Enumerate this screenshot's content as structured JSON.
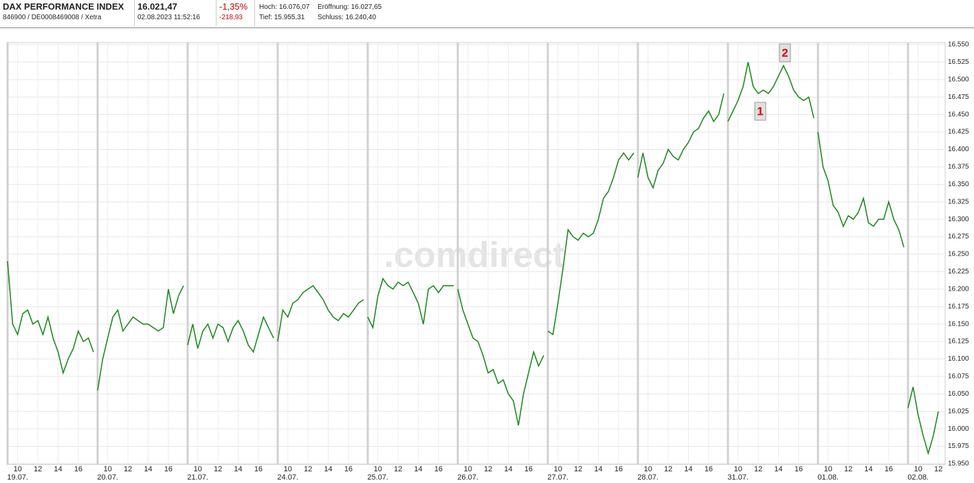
{
  "header": {
    "name": "DAX PERFORMANCE INDEX",
    "ids": "846900 / DE0008469008 / Xetra",
    "price": "16.021,47",
    "datetime": "02.08.2023 11:52:16",
    "change_pct": "-1,35%",
    "change_abs": "-218,93",
    "high": "Hoch: 16.076,07",
    "low": "Tief: 15.955,31",
    "open": "Eröffnung: 16.027,65",
    "close": "Schluss: 16.240,40"
  },
  "chart_data": {
    "type": "line",
    "color": "#1f8a1f",
    "watermark": ".comdirect",
    "annotations": [
      "1",
      "2"
    ],
    "grid": true,
    "xlim": [
      9,
      17.5
    ],
    "ylim": [
      15950,
      16550
    ],
    "yticks": [
      {
        "value": 15950,
        "label": "15.950"
      },
      {
        "value": 15975,
        "label": "15.975"
      },
      {
        "value": 16000,
        "label": "16.000"
      },
      {
        "value": 16025,
        "label": "16.025"
      },
      {
        "value": 16050,
        "label": "16.050"
      },
      {
        "value": 16075,
        "label": "16.075"
      },
      {
        "value": 16100,
        "label": "16.100"
      },
      {
        "value": 16125,
        "label": "16.125"
      },
      {
        "value": 16150,
        "label": "16.150"
      },
      {
        "value": 16175,
        "label": "16.175"
      },
      {
        "value": 16200,
        "label": "16.200"
      },
      {
        "value": 16225,
        "label": "16.225"
      },
      {
        "value": 16250,
        "label": "16.250"
      },
      {
        "value": 16275,
        "label": "16.275"
      },
      {
        "value": 16300,
        "label": "16.300"
      },
      {
        "value": 16325,
        "label": "16.325"
      },
      {
        "value": 16350,
        "label": "16.350"
      },
      {
        "value": 16375,
        "label": "16.375"
      },
      {
        "value": 16400,
        "label": "16.400"
      },
      {
        "value": 16425,
        "label": "16.425"
      },
      {
        "value": 16450,
        "label": "16.450"
      },
      {
        "value": 16475,
        "label": "16.475"
      },
      {
        "value": 16500,
        "label": "16.500"
      },
      {
        "value": 16525,
        "label": "16.525"
      },
      {
        "value": 16550,
        "label": "16.550"
      }
    ],
    "days": [
      {
        "label": "19.07.",
        "xticks": [
          10,
          12,
          14,
          16
        ],
        "x": [
          9,
          9.5,
          10,
          10.5,
          11,
          11.5,
          12,
          12.5,
          13,
          13.5,
          14,
          14.5,
          15,
          15.5,
          16,
          16.5,
          17,
          17.5
        ],
        "values": [
          16240,
          16150,
          16135,
          16165,
          16170,
          16150,
          16155,
          16135,
          16160,
          16130,
          16110,
          16080,
          16100,
          16115,
          16140,
          16125,
          16130,
          16110
        ]
      },
      {
        "label": "20.07.",
        "xticks": [
          10,
          12,
          14,
          16
        ],
        "x": [
          9,
          9.5,
          10,
          10.5,
          11,
          11.5,
          12,
          12.5,
          13,
          13.5,
          14,
          14.5,
          15,
          15.5,
          16,
          16.5,
          17,
          17.5
        ],
        "values": [
          16055,
          16100,
          16130,
          16160,
          16170,
          16140,
          16150,
          16160,
          16155,
          16150,
          16150,
          16145,
          16140,
          16145,
          16200,
          16165,
          16190,
          16205
        ]
      },
      {
        "label": "21.07.",
        "xticks": [
          10,
          12,
          14,
          16
        ],
        "x": [
          9,
          9.5,
          10,
          10.5,
          11,
          11.5,
          12,
          12.5,
          13,
          13.5,
          14,
          14.5,
          15,
          15.5,
          16,
          16.5,
          17,
          17.5
        ],
        "values": [
          16120,
          16150,
          16115,
          16140,
          16150,
          16130,
          16150,
          16145,
          16125,
          16145,
          16155,
          16140,
          16120,
          16110,
          16135,
          16160,
          16145,
          16130
        ]
      },
      {
        "label": "24.07.",
        "xticks": [
          10,
          12,
          14,
          16
        ],
        "x": [
          9,
          9.5,
          10,
          10.5,
          11,
          11.5,
          12,
          12.5,
          13,
          13.5,
          14,
          14.5,
          15,
          15.5,
          16,
          16.5,
          17,
          17.5
        ],
        "values": [
          16125,
          16170,
          16160,
          16180,
          16185,
          16195,
          16200,
          16205,
          16195,
          16185,
          16170,
          16160,
          16155,
          16165,
          16160,
          16170,
          16180,
          16185
        ]
      },
      {
        "label": "25.07.",
        "xticks": [
          10,
          12,
          14,
          16
        ],
        "x": [
          9,
          9.5,
          10,
          10.5,
          11,
          11.5,
          12,
          12.5,
          13,
          13.5,
          14,
          14.5,
          15,
          15.5,
          16,
          16.5,
          17,
          17.5
        ],
        "values": [
          16160,
          16145,
          16190,
          16215,
          16205,
          16200,
          16210,
          16205,
          16210,
          16195,
          16180,
          16150,
          16200,
          16205,
          16195,
          16205,
          16205,
          16205
        ]
      },
      {
        "label": "26.07.",
        "xticks": [
          10,
          12,
          14,
          16
        ],
        "x": [
          9,
          9.5,
          10,
          10.5,
          11,
          11.5,
          12,
          12.5,
          13,
          13.5,
          14,
          14.5,
          15,
          15.5,
          16,
          16.5,
          17,
          17.5
        ],
        "values": [
          16200,
          16170,
          16150,
          16130,
          16125,
          16105,
          16080,
          16085,
          16065,
          16070,
          16050,
          16040,
          16005,
          16050,
          16080,
          16110,
          16090,
          16105
        ]
      },
      {
        "label": "27.07.",
        "xticks": [
          10,
          12,
          14,
          16
        ],
        "x": [
          9,
          9.5,
          10,
          10.5,
          11,
          11.5,
          12,
          12.5,
          13,
          13.5,
          14,
          14.5,
          15,
          15.5,
          16,
          16.5,
          17,
          17.5
        ],
        "values": [
          16140,
          16135,
          16180,
          16230,
          16285,
          16275,
          16270,
          16280,
          16275,
          16280,
          16300,
          16330,
          16340,
          16360,
          16385,
          16395,
          16385,
          16395
        ]
      },
      {
        "label": "28.07.",
        "xticks": [
          10,
          12,
          14,
          16
        ],
        "x": [
          9,
          9.5,
          10,
          10.5,
          11,
          11.5,
          12,
          12.5,
          13,
          13.5,
          14,
          14.5,
          15,
          15.5,
          16,
          16.5,
          17,
          17.5
        ],
        "values": [
          16360,
          16395,
          16360,
          16345,
          16370,
          16380,
          16400,
          16390,
          16385,
          16400,
          16410,
          16425,
          16430,
          16445,
          16455,
          16440,
          16450,
          16480
        ]
      },
      {
        "label": "31.07.",
        "xticks": [
          10,
          12,
          14,
          16
        ],
        "x": [
          9,
          9.5,
          10,
          10.5,
          11,
          11.5,
          12,
          12.5,
          13,
          13.5,
          14,
          14.5,
          15,
          15.5,
          16,
          16.5,
          17,
          17.5
        ],
        "values": [
          16440,
          16455,
          16470,
          16490,
          16525,
          16490,
          16480,
          16485,
          16480,
          16490,
          16505,
          16520,
          16505,
          16485,
          16475,
          16470,
          16475,
          16445
        ]
      },
      {
        "label": "01.08.",
        "xticks": [
          10,
          12,
          14,
          16
        ],
        "x": [
          9,
          9.5,
          10,
          10.5,
          11,
          11.5,
          12,
          12.5,
          13,
          13.5,
          14,
          14.5,
          15,
          15.5,
          16,
          16.5,
          17,
          17.5
        ],
        "values": [
          16425,
          16375,
          16355,
          16320,
          16310,
          16290,
          16305,
          16300,
          16310,
          16330,
          16295,
          16290,
          16300,
          16300,
          16325,
          16300,
          16285,
          16260
        ]
      },
      {
        "label": "02.08.",
        "xticks": [
          10,
          12
        ],
        "x": [
          9,
          9.5,
          10,
          10.5,
          11,
          11.5,
          12
        ],
        "values": [
          16030,
          16060,
          16020,
          15990,
          15965,
          15990,
          16025
        ]
      }
    ]
  }
}
